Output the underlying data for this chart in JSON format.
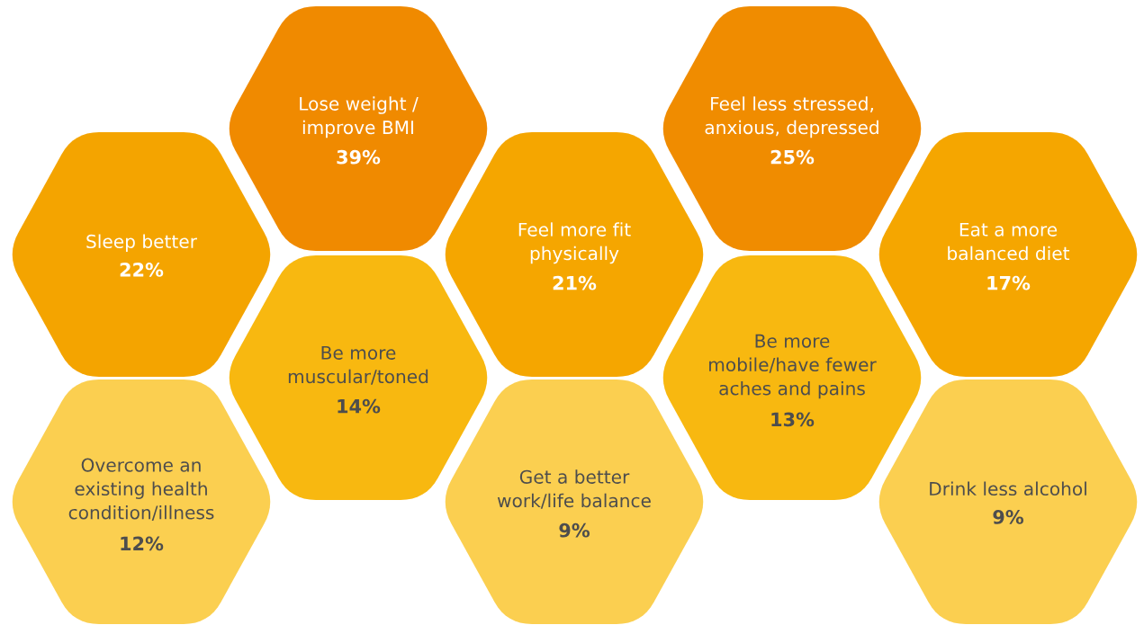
{
  "chart_data": {
    "type": "other",
    "categories": [
      "Lose weight /\nimprove BMI",
      "Feel less stressed,\nanxious, depressed",
      "Sleep better",
      "Feel more fit\nphysically",
      "Eat a more\nbalanced diet",
      "Be more\nmuscular/toned",
      "Be more\nmobile/have fewer\naches and pains",
      "Overcome an\nexisting health\ncondition/illness",
      "Get a better\nwork/life balance",
      "Drink less alcohol"
    ],
    "values": [
      39,
      25,
      22,
      21,
      17,
      14,
      13,
      12,
      9,
      9
    ],
    "value_labels": [
      "39%",
      "25%",
      "22%",
      "21%",
      "17%",
      "14%",
      "13%",
      "12%",
      "9%",
      "9%"
    ],
    "colors": [
      "#f08a00",
      "#f08c00",
      "#f4a400",
      "#f5a600",
      "#f5a600",
      "#f8b810",
      "#f8b810",
      "#fbcf50",
      "#fbcf50",
      "#fbcf50"
    ]
  }
}
